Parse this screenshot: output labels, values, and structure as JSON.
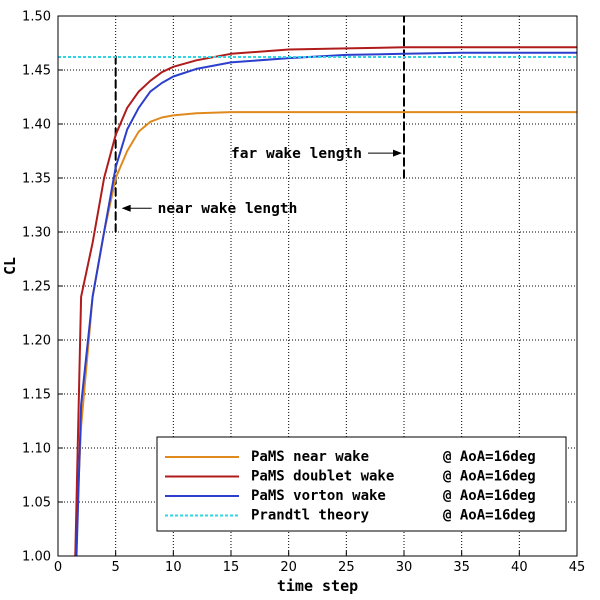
{
  "chart_data": {
    "type": "line",
    "title": "",
    "xlabel": "time step",
    "ylabel": "CL",
    "xlim": [
      0,
      45
    ],
    "ylim": [
      1.0,
      1.5
    ],
    "grid": true,
    "legend_position": "bottom-right",
    "x_ticks": [
      0,
      5,
      10,
      15,
      20,
      25,
      30,
      35,
      40,
      45
    ],
    "x_tick_labels": [
      "0",
      "5",
      "10",
      "15",
      "20",
      "25",
      "30",
      "35",
      "40",
      "45"
    ],
    "y_ticks": [
      1.0,
      1.05,
      1.1,
      1.15,
      1.2,
      1.25,
      1.3,
      1.35,
      1.4,
      1.45,
      1.5
    ],
    "y_tick_labels": [
      "1.00",
      "1.05",
      "1.10",
      "1.15",
      "1.20",
      "1.25",
      "1.30",
      "1.35",
      "1.40",
      "1.45",
      "1.50"
    ],
    "series": [
      {
        "name": "PaMS near wake",
        "condition": "@ AoA=16deg",
        "color": "#e08a1e",
        "style": "solid",
        "x": [
          1.5,
          1.7,
          2,
          3,
          4,
          5,
          6,
          7,
          8,
          9,
          10,
          12,
          15,
          20,
          25,
          30,
          35,
          40,
          45
        ],
        "y": [
          1.0,
          1.05,
          1.12,
          1.24,
          1.3,
          1.35,
          1.375,
          1.393,
          1.402,
          1.406,
          1.408,
          1.41,
          1.411,
          1.411,
          1.411,
          1.411,
          1.411,
          1.411,
          1.411
        ]
      },
      {
        "name": "PaMS doublet wake",
        "condition": "@ AoA=16deg",
        "color": "#b01c1c",
        "style": "solid",
        "x": [
          1.5,
          2,
          3,
          4,
          5,
          6,
          7,
          8,
          9,
          10,
          12,
          15,
          20,
          25,
          30,
          35,
          40,
          45
        ],
        "y": [
          1.0,
          1.24,
          1.29,
          1.35,
          1.39,
          1.415,
          1.43,
          1.44,
          1.448,
          1.453,
          1.459,
          1.465,
          1.469,
          1.47,
          1.471,
          1.471,
          1.471,
          1.471
        ]
      },
      {
        "name": "PaMS vorton wake",
        "condition": "@ AoA=16deg",
        "color": "#2c3fcc",
        "style": "solid",
        "x": [
          1.6,
          2,
          3,
          4,
          5,
          6,
          7,
          8,
          9,
          10,
          12,
          15,
          20,
          25,
          30,
          35,
          40,
          45
        ],
        "y": [
          1.0,
          1.14,
          1.24,
          1.3,
          1.36,
          1.395,
          1.415,
          1.43,
          1.438,
          1.444,
          1.451,
          1.457,
          1.461,
          1.464,
          1.465,
          1.466,
          1.466,
          1.466
        ]
      },
      {
        "name": "Prandtl theory",
        "condition": "@ AoA=16deg",
        "color": "#2fd6e6",
        "style": "dotted",
        "x": [
          0,
          45
        ],
        "y": [
          1.462,
          1.462
        ]
      }
    ],
    "markers": [
      {
        "x": 5,
        "y_from": 1.3,
        "y_to": 1.465
      },
      {
        "x": 30,
        "y_from": 1.35,
        "y_to": 1.5
      }
    ],
    "annotations": [
      {
        "text": "far wake length",
        "arrow": "right",
        "x": 30,
        "y": 1.373
      },
      {
        "text": "near wake length",
        "arrow": "left",
        "x": 5,
        "y": 1.322
      }
    ]
  }
}
